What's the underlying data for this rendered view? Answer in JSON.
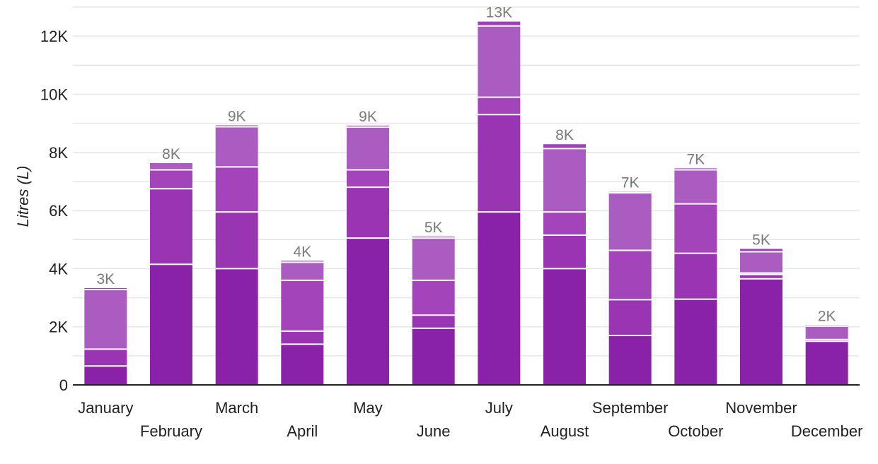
{
  "chart_data": {
    "type": "bar",
    "stacked": true,
    "title": "",
    "xlabel": "",
    "ylabel": "Litres (L)",
    "ylim": [
      0,
      13000
    ],
    "yticks": [
      0,
      2000,
      4000,
      6000,
      8000,
      10000,
      12000
    ],
    "ytick_labels": [
      "0",
      "2K",
      "4K",
      "6K",
      "8K",
      "10K",
      "12K"
    ],
    "grid": true,
    "legend": "none",
    "categories": [
      "January",
      "February",
      "March",
      "April",
      "May",
      "June",
      "July",
      "August",
      "September",
      "October",
      "November",
      "December"
    ],
    "series": [
      {
        "values": [
          650,
          4150,
          4000,
          1400,
          5050,
          1950,
          5950,
          4000,
          1700,
          2950,
          3650,
          1500
        ],
        "color": "#8a22a8"
      },
      {
        "values": [
          580,
          2600,
          1950,
          450,
          1750,
          450,
          3350,
          1150,
          1230,
          1580,
          150,
          60
        ],
        "color": "#9935b3"
      },
      {
        "values": [
          0,
          650,
          1550,
          1750,
          600,
          1200,
          600,
          800,
          1700,
          1700,
          50,
          0
        ],
        "color": "#a444ba"
      },
      {
        "values": [
          2050,
          230,
          1380,
          620,
          1470,
          1450,
          2450,
          2180,
          1980,
          1170,
          730,
          460
        ],
        "color": "#ab5cc1"
      },
      {
        "values": [
          50,
          0,
          50,
          50,
          50,
          50,
          150,
          150,
          30,
          50,
          100,
          30
        ],
        "color": "#a040b8"
      }
    ],
    "totals_labels": [
      "3K",
      "8K",
      "9K",
      "4K",
      "9K",
      "5K",
      "13K",
      "8K",
      "7K",
      "7K",
      "5K",
      "2K"
    ]
  }
}
